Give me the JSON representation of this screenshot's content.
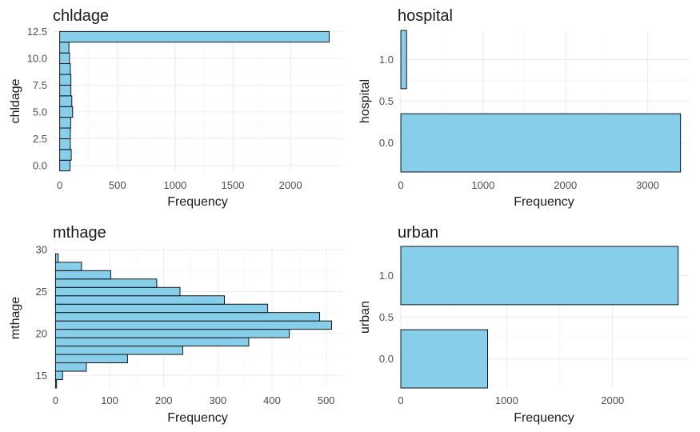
{
  "chart_data": [
    {
      "type": "bar",
      "orientation": "horizontal",
      "title": "chldage",
      "xlabel": "Frequency",
      "ylabel": "chldage",
      "bin_width": 1,
      "bins": [
        0,
        1,
        2,
        3,
        4,
        5,
        6,
        7,
        8,
        9,
        10,
        11,
        12
      ],
      "values": [
        90,
        100,
        92,
        92,
        95,
        112,
        105,
        97,
        97,
        92,
        85,
        80,
        2335
      ],
      "xlim": [
        -60,
        2450
      ],
      "ylim": [
        -0.6,
        12.6
      ],
      "xticks": [
        0,
        500,
        1000,
        1500,
        2000
      ],
      "yticks": [
        0.0,
        2.5,
        5.0,
        7.5,
        10.0,
        12.5
      ],
      "xtick_labels": [
        "0",
        "500",
        "1000",
        "1500",
        "2000"
      ],
      "ytick_labels": [
        "0.0",
        "2.5",
        "5.0",
        "7.5",
        "10.0",
        "12.5"
      ]
    },
    {
      "type": "bar",
      "orientation": "horizontal",
      "title": "hospital",
      "xlabel": "Frequency",
      "ylabel": "hospital",
      "bin_width": 0.7,
      "bins": [
        0,
        1
      ],
      "values": [
        3400,
        70
      ],
      "xlim": [
        -20,
        3500
      ],
      "ylim": [
        -0.35,
        1.35
      ],
      "xticks": [
        0,
        1000,
        2000,
        3000
      ],
      "yticks": [
        0.0,
        0.5,
        1.0
      ],
      "xtick_labels": [
        "0",
        "1000",
        "2000",
        "3000"
      ],
      "ytick_labels": [
        "0.0",
        "0.5",
        "1.0"
      ]
    },
    {
      "type": "bar",
      "orientation": "horizontal",
      "title": "mthage",
      "xlabel": "Frequency",
      "ylabel": "mthage",
      "bin_width": 1,
      "bins": [
        14,
        15,
        16,
        17,
        18,
        19,
        20,
        21,
        22,
        23,
        24,
        25,
        26,
        27,
        28,
        29
      ],
      "values": [
        2,
        13,
        57,
        133,
        235,
        357,
        432,
        510,
        488,
        392,
        312,
        230,
        187,
        102,
        48,
        5
      ],
      "xlim": [
        -5,
        530
      ],
      "ylim": [
        13.5,
        30.2
      ],
      "xticks": [
        0,
        100,
        200,
        300,
        400,
        500
      ],
      "yticks": [
        15,
        20,
        25,
        30
      ],
      "xtick_labels": [
        "0",
        "100",
        "200",
        "300",
        "400",
        "500"
      ],
      "ytick_labels": [
        "15",
        "20",
        "25",
        "30"
      ]
    },
    {
      "type": "bar",
      "orientation": "horizontal",
      "title": "urban",
      "xlabel": "Frequency",
      "ylabel": "urban",
      "bin_width": 0.7,
      "bins": [
        0,
        1
      ],
      "values": [
        820,
        2620
      ],
      "xlim": [
        -15,
        2720
      ],
      "ylim": [
        -0.35,
        1.35
      ],
      "xticks": [
        0,
        1000,
        2000
      ],
      "yticks": [
        0.0,
        0.5,
        1.0
      ],
      "xtick_labels": [
        "0",
        "1000",
        "2000"
      ],
      "ytick_labels": [
        "0.0",
        "0.5",
        "1.0"
      ]
    }
  ],
  "colors": {
    "bar_fill": "#87CEEB",
    "bar_stroke": "#000000",
    "grid": "#ebebeb"
  }
}
